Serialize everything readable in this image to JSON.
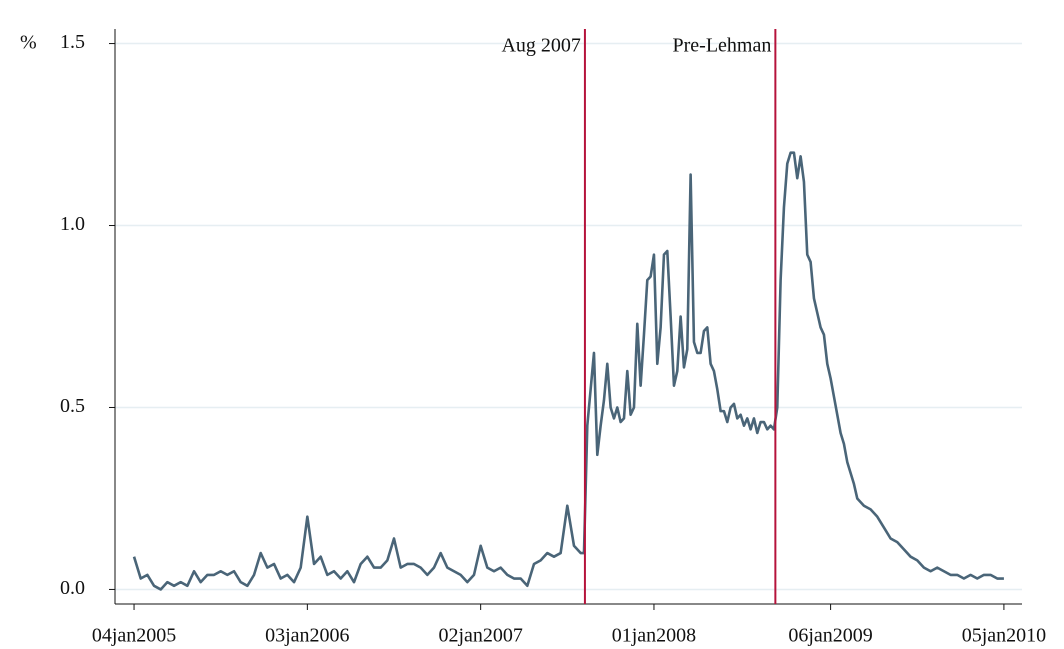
{
  "chart_data": {
    "type": "line",
    "y_label": "%",
    "x": [
      "2005-01-04",
      "2005-01-18",
      "2005-02-01",
      "2005-02-15",
      "2005-03-01",
      "2005-03-15",
      "2005-03-29",
      "2005-04-12",
      "2005-04-26",
      "2005-05-10",
      "2005-05-24",
      "2005-06-07",
      "2005-06-21",
      "2005-07-05",
      "2005-07-19",
      "2005-08-02",
      "2005-08-16",
      "2005-08-30",
      "2005-09-13",
      "2005-09-27",
      "2005-10-11",
      "2005-10-25",
      "2005-11-08",
      "2005-11-22",
      "2005-12-06",
      "2005-12-20",
      "2006-01-03",
      "2006-01-17",
      "2006-01-31",
      "2006-02-14",
      "2006-02-28",
      "2006-03-14",
      "2006-03-28",
      "2006-04-11",
      "2006-04-25",
      "2006-05-09",
      "2006-05-23",
      "2006-06-06",
      "2006-06-20",
      "2006-07-04",
      "2006-07-18",
      "2006-08-01",
      "2006-08-15",
      "2006-08-29",
      "2006-09-12",
      "2006-09-26",
      "2006-10-10",
      "2006-10-24",
      "2006-11-07",
      "2006-11-21",
      "2006-12-05",
      "2006-12-19",
      "2007-01-02",
      "2007-01-16",
      "2007-01-30",
      "2007-02-13",
      "2007-02-27",
      "2007-03-13",
      "2007-03-27",
      "2007-04-10",
      "2007-04-24",
      "2007-05-08",
      "2007-05-22",
      "2007-06-05",
      "2007-06-19",
      "2007-07-03",
      "2007-07-17",
      "2007-07-31",
      "2007-08-07",
      "2007-08-14",
      "2007-08-21",
      "2007-08-28",
      "2007-09-04",
      "2007-09-11",
      "2007-09-18",
      "2007-09-25",
      "2007-10-02",
      "2007-10-09",
      "2007-10-16",
      "2007-10-23",
      "2007-10-30",
      "2007-11-06",
      "2007-11-13",
      "2007-11-20",
      "2007-11-27",
      "2007-12-04",
      "2007-12-11",
      "2007-12-18",
      "2007-12-25",
      "2008-01-01",
      "2008-01-08",
      "2008-01-15",
      "2008-01-22",
      "2008-01-29",
      "2008-02-05",
      "2008-02-12",
      "2008-02-19",
      "2008-02-26",
      "2008-03-04",
      "2008-03-11",
      "2008-03-18",
      "2008-03-25",
      "2008-04-01",
      "2008-04-08",
      "2008-04-15",
      "2008-04-22",
      "2008-04-29",
      "2008-05-06",
      "2008-05-13",
      "2008-05-20",
      "2008-05-27",
      "2008-06-03",
      "2008-06-10",
      "2008-06-17",
      "2008-06-24",
      "2008-07-01",
      "2008-07-08",
      "2008-07-15",
      "2008-07-22",
      "2008-07-29",
      "2008-08-05",
      "2008-08-12",
      "2008-08-19",
      "2008-08-26",
      "2008-09-02",
      "2008-09-09",
      "2008-09-16",
      "2008-09-23",
      "2008-09-30",
      "2008-10-07",
      "2008-10-14",
      "2008-10-21",
      "2008-10-28",
      "2008-11-04",
      "2008-11-11",
      "2008-11-18",
      "2008-11-25",
      "2008-12-02",
      "2008-12-09",
      "2008-12-16",
      "2008-12-23",
      "2008-12-30",
      "2009-01-06",
      "2009-01-13",
      "2009-01-20",
      "2009-01-27",
      "2009-02-03",
      "2009-02-10",
      "2009-02-17",
      "2009-02-24",
      "2009-03-03",
      "2009-03-17",
      "2009-03-31",
      "2009-04-14",
      "2009-04-28",
      "2009-05-12",
      "2009-05-26",
      "2009-06-09",
      "2009-06-23",
      "2009-07-07",
      "2009-07-21",
      "2009-08-04",
      "2009-08-18",
      "2009-09-01",
      "2009-09-15",
      "2009-09-29",
      "2009-10-13",
      "2009-10-27",
      "2009-11-10",
      "2009-11-24",
      "2009-12-08",
      "2009-12-22",
      "2010-01-05"
    ],
    "series": [
      {
        "color": "#4a6578",
        "values": [
          0.09,
          0.03,
          0.04,
          0.01,
          0.0,
          0.02,
          0.01,
          0.02,
          0.01,
          0.05,
          0.02,
          0.04,
          0.04,
          0.05,
          0.04,
          0.05,
          0.02,
          0.01,
          0.04,
          0.1,
          0.06,
          0.07,
          0.03,
          0.04,
          0.02,
          0.06,
          0.2,
          0.07,
          0.09,
          0.04,
          0.05,
          0.03,
          0.05,
          0.02,
          0.07,
          0.09,
          0.06,
          0.06,
          0.08,
          0.14,
          0.06,
          0.07,
          0.07,
          0.06,
          0.04,
          0.06,
          0.1,
          0.06,
          0.05,
          0.04,
          0.02,
          0.04,
          0.12,
          0.06,
          0.05,
          0.06,
          0.04,
          0.03,
          0.03,
          0.01,
          0.07,
          0.08,
          0.1,
          0.09,
          0.1,
          0.23,
          0.12,
          0.1,
          0.1,
          0.45,
          0.55,
          0.65,
          0.37,
          0.45,
          0.52,
          0.62,
          0.5,
          0.47,
          0.5,
          0.46,
          0.47,
          0.6,
          0.48,
          0.5,
          0.73,
          0.56,
          0.7,
          0.85,
          0.86,
          0.92,
          0.62,
          0.72,
          0.92,
          0.93,
          0.75,
          0.56,
          0.6,
          0.75,
          0.61,
          0.66,
          1.14,
          0.68,
          0.65,
          0.65,
          0.71,
          0.72,
          0.62,
          0.6,
          0.55,
          0.49,
          0.49,
          0.46,
          0.5,
          0.51,
          0.47,
          0.48,
          0.45,
          0.47,
          0.44,
          0.47,
          0.43,
          0.46,
          0.46,
          0.44,
          0.45,
          0.44,
          0.5,
          0.85,
          1.05,
          1.17,
          1.2,
          1.2,
          1.13,
          1.19,
          1.12,
          0.92,
          0.9,
          0.8,
          0.76,
          0.72,
          0.7,
          0.62,
          0.58,
          0.53,
          0.48,
          0.43,
          0.4,
          0.35,
          0.32,
          0.29,
          0.25,
          0.23,
          0.22,
          0.2,
          0.17,
          0.14,
          0.13,
          0.11,
          0.09,
          0.08,
          0.06,
          0.05,
          0.06,
          0.05,
          0.04,
          0.04,
          0.03,
          0.04,
          0.03,
          0.04,
          0.04,
          0.03,
          0.03
        ]
      }
    ],
    "xlim": [
      "2004-11-25",
      "2010-02-12"
    ],
    "xticks": [
      {
        "value": "2005-01-04",
        "label": "04jan2005"
      },
      {
        "value": "2006-01-03",
        "label": "03jan2006"
      },
      {
        "value": "2007-01-02",
        "label": "02jan2007"
      },
      {
        "value": "2008-01-01",
        "label": "01jan2008"
      },
      {
        "value": "2009-01-06",
        "label": "06jan2009"
      },
      {
        "value": "2010-01-05",
        "label": "05jan2010"
      }
    ],
    "ylim": [
      -0.04,
      1.54
    ],
    "yticks": [
      {
        "value": 0,
        "label": "0.0"
      },
      {
        "value": 0.5,
        "label": "0.5"
      },
      {
        "value": 1,
        "label": "1.0"
      },
      {
        "value": 1.5,
        "label": "1.5"
      }
    ],
    "grid": true,
    "annotations": [
      {
        "text": "Aug 2007",
        "x": "2007-08-09",
        "color": "#b5133b"
      },
      {
        "text": "Pre-Lehman",
        "x": "2008-09-12",
        "color": "#b5133b"
      }
    ]
  }
}
